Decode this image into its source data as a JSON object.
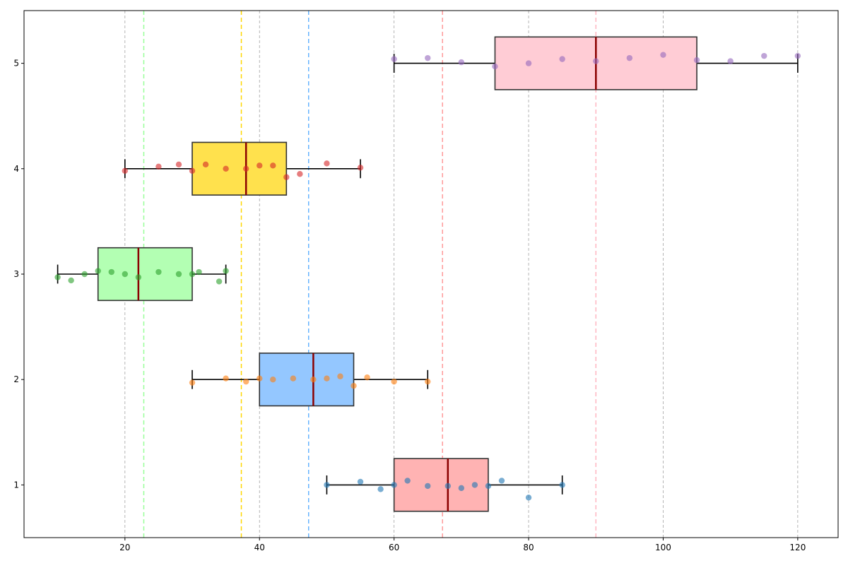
{
  "chart_data": {
    "type": "box",
    "orientation": "horizontal",
    "title": "",
    "xlabel": "",
    "ylabel": "",
    "xlim": [
      5,
      126
    ],
    "ylim": [
      0.5,
      5.5
    ],
    "x_ticks": [
      20,
      40,
      60,
      80,
      100,
      120
    ],
    "y_ticks": [
      1,
      2,
      3,
      4,
      5
    ],
    "grid": {
      "x": true,
      "y": false,
      "style": "dashed",
      "color": "#999999"
    },
    "colors": {
      "median": "#8b0000",
      "whisker": "#000000",
      "box_edge": "#333333",
      "grid": "#999999"
    },
    "series": [
      {
        "position": 1,
        "box_color": "#ffb3b3",
        "point_color": "#1f77b4",
        "mean_color": "#ff9999",
        "whisker_low": 50,
        "q1": 60,
        "median": 68,
        "q3": 74,
        "whisker_high": 85,
        "mean": 67.2,
        "points": [
          [
            50,
            1.0
          ],
          [
            55,
            1.03
          ],
          [
            58,
            0.96
          ],
          [
            60,
            1.0
          ],
          [
            62,
            1.04
          ],
          [
            65,
            0.99
          ],
          [
            68,
            0.99
          ],
          [
            70,
            0.97
          ],
          [
            72,
            1.0
          ],
          [
            74,
            0.99
          ],
          [
            76,
            1.04
          ],
          [
            80,
            0.88
          ],
          [
            85,
            1.0
          ]
        ]
      },
      {
        "position": 2,
        "box_color": "#94c7ff",
        "point_color": "#ff7f0e",
        "mean_color": "#66b3ff",
        "whisker_low": 30,
        "q1": 40,
        "median": 48,
        "q3": 54,
        "whisker_high": 65,
        "mean": 47.3,
        "points": [
          [
            30,
            1.97
          ],
          [
            35,
            2.01
          ],
          [
            38,
            1.98
          ],
          [
            40,
            2.01
          ],
          [
            42,
            2.0
          ],
          [
            45,
            2.01
          ],
          [
            48,
            2.0
          ],
          [
            50,
            2.01
          ],
          [
            52,
            2.03
          ],
          [
            54,
            1.94
          ],
          [
            56,
            2.02
          ],
          [
            60,
            1.98
          ],
          [
            65,
            1.98
          ]
        ]
      },
      {
        "position": 3,
        "box_color": "#b3ffb3",
        "point_color": "#2ca02c",
        "mean_color": "#99ff99",
        "whisker_low": 10,
        "q1": 16,
        "median": 22,
        "q3": 30,
        "whisker_high": 35,
        "mean": 22.8,
        "points": [
          [
            10,
            2.97
          ],
          [
            12,
            2.94
          ],
          [
            14,
            3.0
          ],
          [
            16,
            3.03
          ],
          [
            18,
            3.02
          ],
          [
            20,
            3.0
          ],
          [
            22,
            2.97
          ],
          [
            25,
            3.02
          ],
          [
            28,
            3.0
          ],
          [
            30,
            3.0
          ],
          [
            31,
            3.02
          ],
          [
            34,
            2.93
          ],
          [
            35,
            3.03
          ]
        ]
      },
      {
        "position": 4,
        "box_color": "#ffe14d",
        "point_color": "#d62728",
        "mean_color": "#ffd700",
        "whisker_low": 20,
        "q1": 30,
        "median": 38,
        "q3": 44,
        "whisker_high": 55,
        "mean": 37.3,
        "points": [
          [
            20,
            3.98
          ],
          [
            25,
            4.02
          ],
          [
            28,
            4.04
          ],
          [
            30,
            3.98
          ],
          [
            32,
            4.04
          ],
          [
            35,
            4.0
          ],
          [
            38,
            4.0
          ],
          [
            40,
            4.03
          ],
          [
            42,
            4.03
          ],
          [
            44,
            3.92
          ],
          [
            46,
            3.95
          ],
          [
            50,
            4.05
          ],
          [
            55,
            4.01
          ]
        ]
      },
      {
        "position": 5,
        "box_color": "#ffccd5",
        "point_color": "#9467bd",
        "mean_color": "#ffb6c1",
        "whisker_low": 60,
        "q1": 75,
        "median": 90,
        "q3": 105,
        "whisker_high": 120,
        "mean": 90.0,
        "points": [
          [
            60,
            5.04
          ],
          [
            65,
            5.05
          ],
          [
            70,
            5.01
          ],
          [
            75,
            4.97
          ],
          [
            80,
            5.0
          ],
          [
            85,
            5.04
          ],
          [
            90,
            5.02
          ],
          [
            95,
            5.05
          ],
          [
            100,
            5.08
          ],
          [
            105,
            5.03
          ],
          [
            110,
            5.02
          ],
          [
            115,
            5.07
          ],
          [
            120,
            5.07
          ]
        ]
      }
    ]
  }
}
